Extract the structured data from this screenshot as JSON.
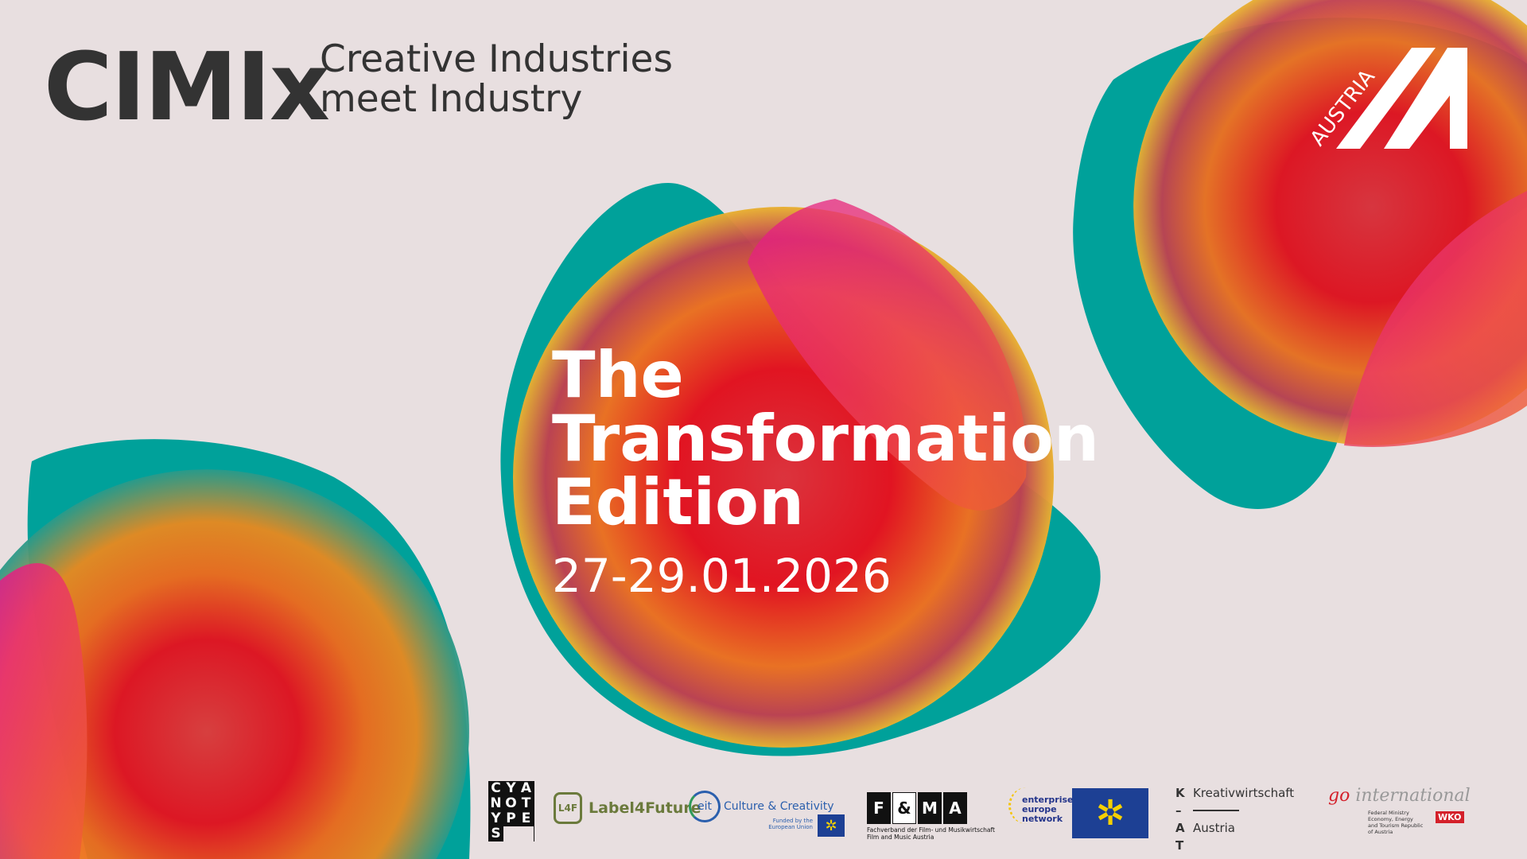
{
  "header": {
    "brand": "CIMIx",
    "tagline_line1": "Creative Industries",
    "tagline_line2": "meet Industry"
  },
  "event": {
    "title_line1": "The",
    "title_line2": "Transformation",
    "title_line3": "Edition",
    "date": "27-29.01.2026"
  },
  "austria_logo": {
    "text": "AUSTRIA"
  },
  "colors": {
    "background": "#e8dfe0",
    "teal": "#00a19a",
    "red": "#e8102a",
    "orange": "#f07a1a",
    "magenta": "#e5198a",
    "yellow": "#e8b030"
  },
  "partners": {
    "cyanotypes": [
      "C",
      "Y",
      "A",
      "N",
      "O",
      "T",
      "Y",
      "P",
      "E",
      "S"
    ],
    "label4future": {
      "mark": "L4F",
      "name": "Label4Future"
    },
    "eit": {
      "mark": "eit",
      "name": "Culture & Creativity",
      "funded": "Funded by the European Union"
    },
    "fma": {
      "letters": [
        "F",
        "&",
        "M",
        "A"
      ],
      "line1": "Fachverband der Film- und Musikwirtschaft",
      "line2": "Film and Music Austria"
    },
    "een": {
      "line1": "enterprise",
      "line2": "europe",
      "line3": "network"
    },
    "kat": {
      "k": "K",
      "a": "A",
      "t": "T",
      "line1": "Kreativwirtschaft",
      "line2": "Austria"
    },
    "go_international": {
      "go": "go",
      "word": "international",
      "ministry": "Federal Ministry Economy, Energy and Tourism Republic of Austria",
      "wko": "WKO"
    }
  }
}
